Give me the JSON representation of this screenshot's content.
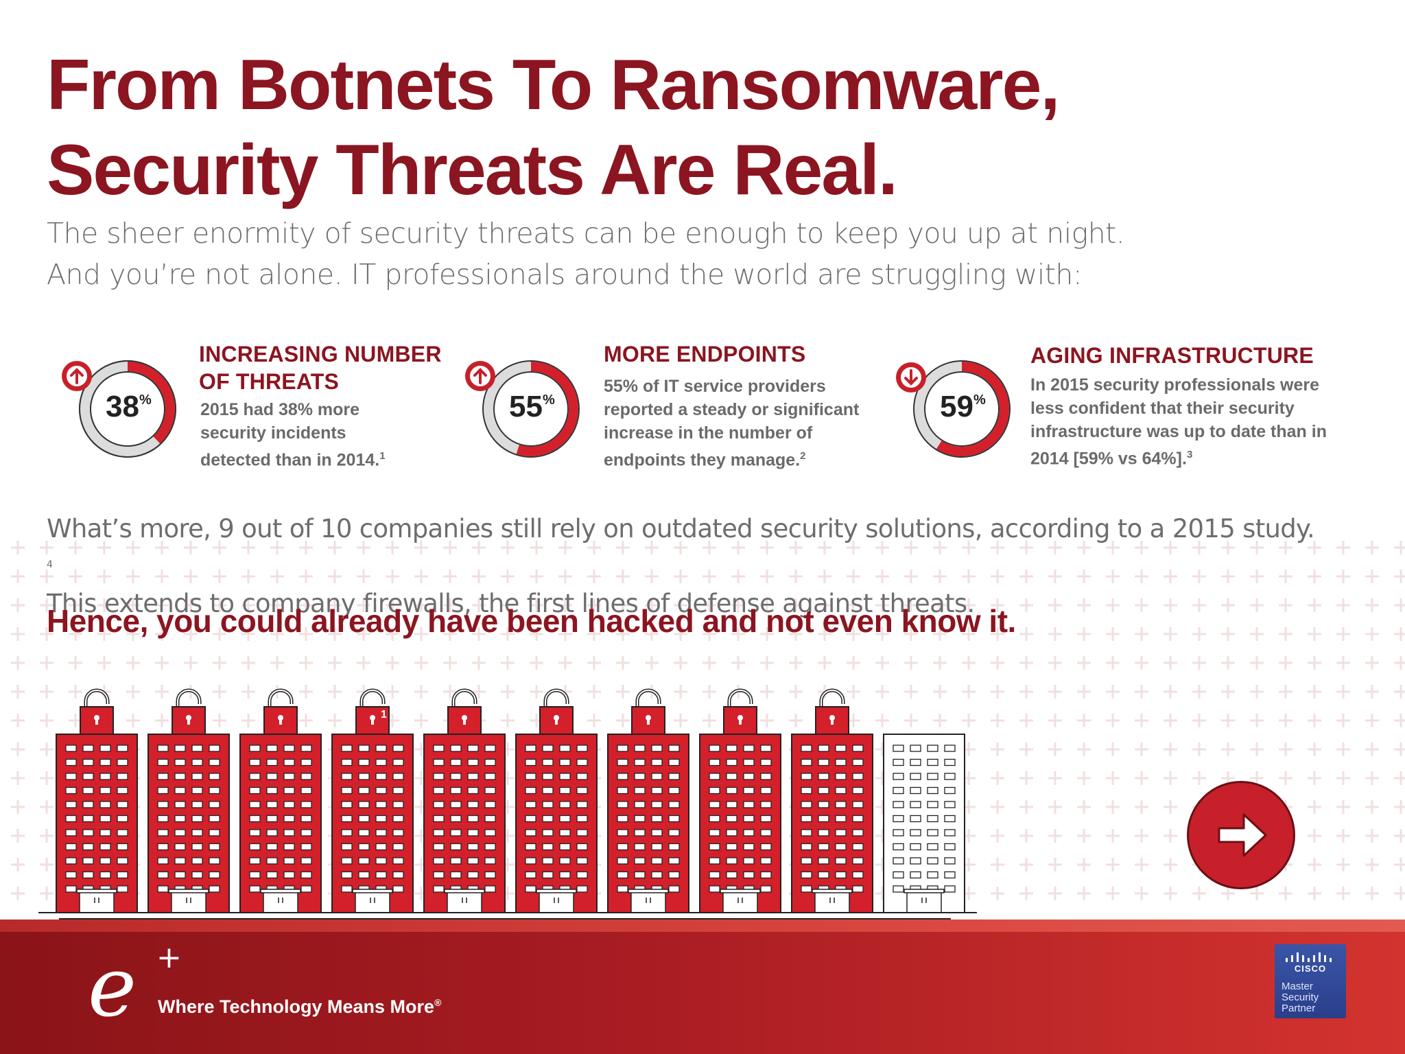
{
  "title": {
    "line1": "From Botnets To Ransomware,",
    "line2": "Security Threats Are Real."
  },
  "intro": {
    "line1": "The sheer enormity of security threats can be enough to keep you up at night.",
    "line2": "And you’re not alone.  IT professionals around the world are struggling with:"
  },
  "stats": [
    {
      "value": "38",
      "unit": "%",
      "percent": 38,
      "trend": "up",
      "heading_line1": "INCREASING NUMBER",
      "heading_line2": "OF THREATS",
      "lines": [
        "2015 had 38% more",
        "security incidents",
        "detected than in 2014."
      ],
      "footnote": "1"
    },
    {
      "value": "55",
      "unit": "%",
      "percent": 55,
      "trend": "up",
      "heading_line1": "MORE ENDPOINTS",
      "lines": [
        "55% of IT service providers",
        "reported a steady or significant",
        "increase in the number of",
        "endpoints they manage."
      ],
      "footnote": "2"
    },
    {
      "value": "59",
      "unit": "%",
      "percent": 59,
      "trend": "down",
      "heading_line1": "AGING INFRASTRUCTURE",
      "lines": [
        "In 2015 security professionals were",
        "less confident that their security",
        "infrastructure was up to date than in",
        "2014 [59% vs 64%]."
      ],
      "footnote": "3"
    }
  ],
  "more": {
    "line1": "What’s more, 9 out of 10 companies still rely on outdated security solutions, according to a 2015 study.",
    "footnote": "4",
    "line2": "This extends to company firewalls, the first lines of defense against threats."
  },
  "hence": "Hence, you could already have been hacked and not even know it.",
  "buildings": {
    "total": 10,
    "hacked": 9,
    "marker_label": "1"
  },
  "colors": {
    "brand_red": "#c8202a",
    "dark_red": "#8b1520",
    "ring_grey": "#dcdcdc",
    "text_grey": "#6d6d6d"
  },
  "icons": {
    "next": "arrow-right-icon",
    "up": "arrow-up-icon",
    "down": "arrow-down-icon",
    "lock": "padlock-open-icon"
  },
  "footer": {
    "logo_letter": "e",
    "logo_plus": "+",
    "tagline": "Where Technology Means More",
    "tagline_mark": "®",
    "cisco": {
      "name": "CISCO",
      "line1": "Master",
      "line2": "Security",
      "line3": "Partner"
    }
  }
}
